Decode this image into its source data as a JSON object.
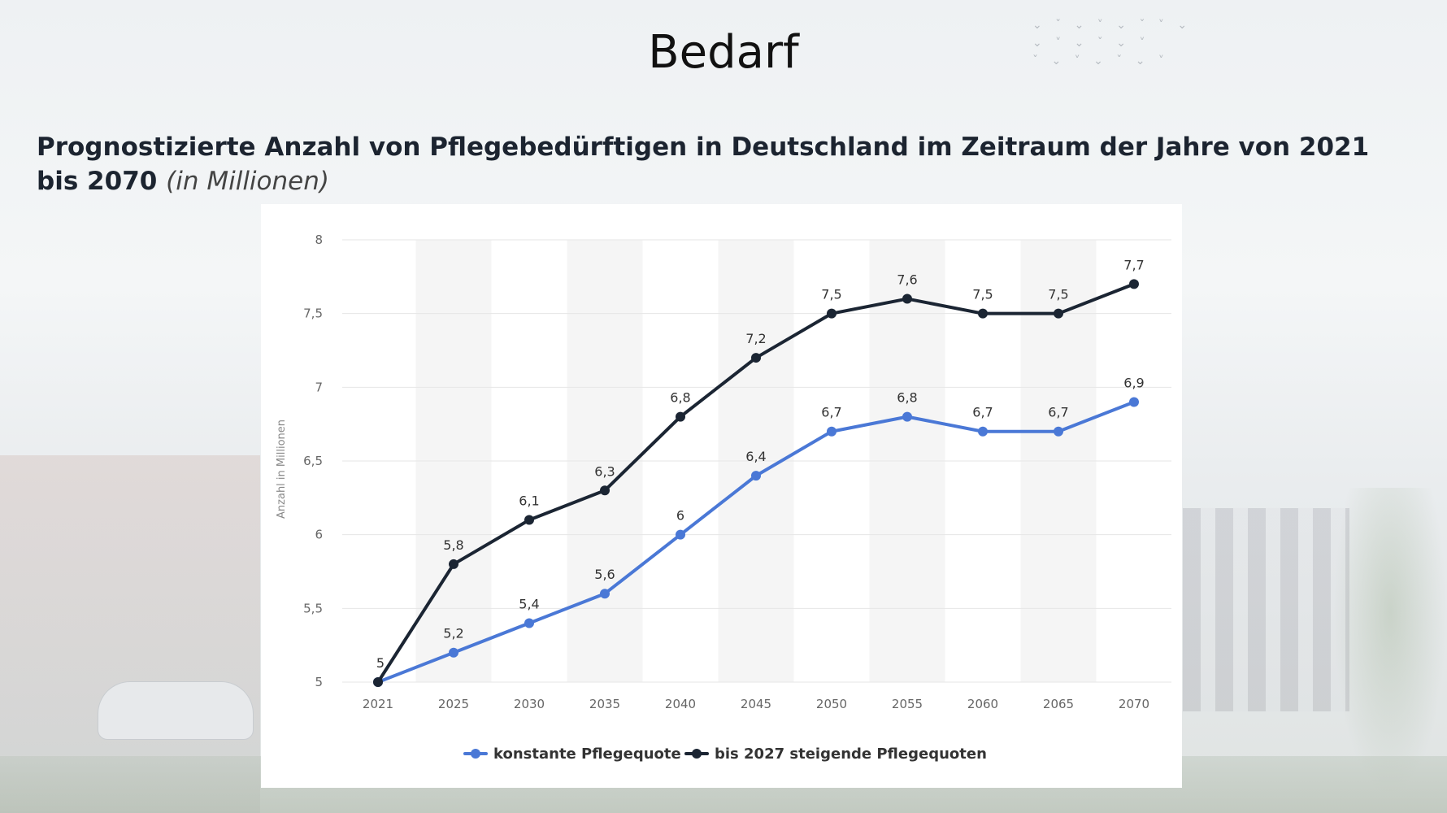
{
  "slide": {
    "title": "Bedarf",
    "subtitle": "Prognostizierte Anzahl von Pflegebedürftigen in Deutschland im Zeitraum der Jahre von 2021 bis 2070",
    "subtitle_unit": "(in Millionen)"
  },
  "colors": {
    "series_constant": "#4a78d6",
    "series_rising": "#1b2533",
    "grid": "#e6e6e6",
    "band": "#f5f5f5"
  },
  "chart_data": {
    "type": "line",
    "title": "Prognostizierte Anzahl von Pflegebedürftigen in Deutschland im Zeitraum der Jahre von 2021 bis 2070",
    "xlabel": "",
    "ylabel": "Anzahl in Millionen",
    "categories": [
      "2021",
      "2025",
      "2030",
      "2035",
      "2040",
      "2045",
      "2050",
      "2055",
      "2060",
      "2065",
      "2070"
    ],
    "ylim": [
      5,
      8
    ],
    "yticks": [
      5,
      5.5,
      6,
      6.5,
      7,
      7.5,
      8
    ],
    "ytick_labels": [
      "5",
      "5,5",
      "6",
      "6,5",
      "7",
      "7,5",
      "8"
    ],
    "grid": true,
    "legend_position": "bottom-center",
    "series": [
      {
        "name": "konstante Pflegequote",
        "values": [
          5,
          5.2,
          5.4,
          5.6,
          6,
          6.4,
          6.7,
          6.8,
          6.7,
          6.7,
          6.9
        ],
        "labels": [
          "5",
          "5,2",
          "5,4",
          "5,6",
          "6",
          "6,4",
          "6,7",
          "6,8",
          "6,7",
          "6,7",
          "6,9"
        ]
      },
      {
        "name": "bis 2027 steigende Pflegequoten",
        "values": [
          5,
          5.8,
          6.1,
          6.3,
          6.8,
          7.2,
          7.5,
          7.6,
          7.5,
          7.5,
          7.7
        ],
        "labels": [
          "5",
          "5,8",
          "6,1",
          "6,3",
          "6,8",
          "7,2",
          "7,5",
          "7,6",
          "7,5",
          "7,5",
          "7,7"
        ]
      }
    ]
  }
}
